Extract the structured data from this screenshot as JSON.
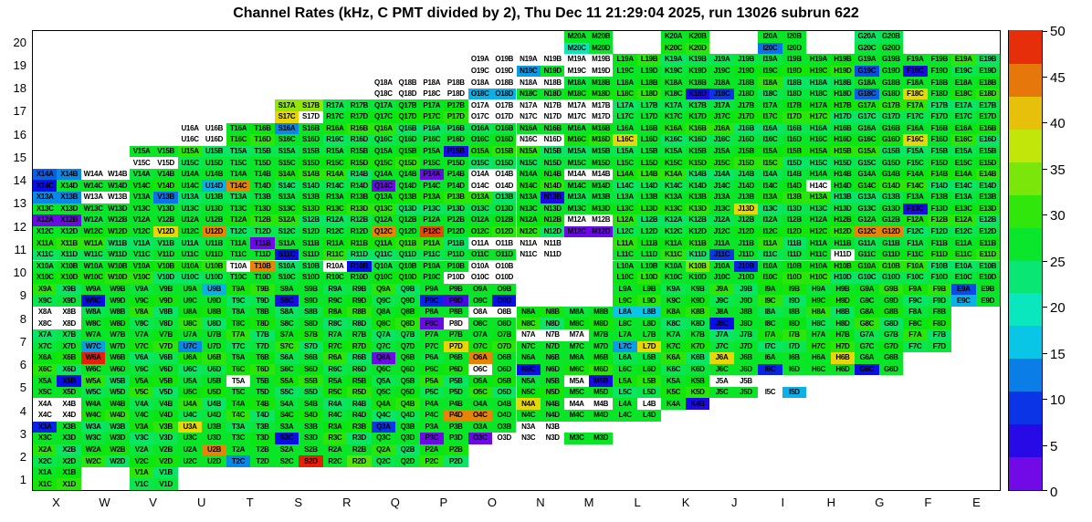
{
  "title": "Channel Rates (kHz, C PMT divided by 2), Thu Dec 11 21:29:04 2025, run 13026 subrun 622",
  "chart_data": {
    "type": "heatmap",
    "value_unit": "kHz",
    "x_categories": [
      "X",
      "W",
      "V",
      "U",
      "T",
      "S",
      "R",
      "Q",
      "P",
      "O",
      "N",
      "M",
      "L",
      "K",
      "J",
      "I",
      "H",
      "G",
      "F",
      "E"
    ],
    "y_categories": [
      1,
      2,
      3,
      4,
      5,
      6,
      7,
      8,
      9,
      10,
      11,
      12,
      13,
      14,
      15,
      16,
      17,
      18,
      19,
      20
    ],
    "cell_label_format": "{column}{row}{suffix}",
    "suffix_layout": {
      "A": "top-left",
      "B": "top-right",
      "C": "bottom-left",
      "D": "bottom-right"
    },
    "colorbar": {
      "min": 0,
      "max": 50,
      "ticks": [
        0,
        5,
        10,
        15,
        20,
        25,
        30,
        35,
        40,
        45,
        50
      ],
      "position": "right"
    },
    "default_value": 27,
    "rows": [
      {
        "row": 20,
        "span": [
          "M",
          "G"
        ],
        "gaps": [
          "L",
          "J",
          "H"
        ],
        "blocks": {
          "M": [
            27,
            27,
            20,
            27
          ],
          "I": [
            27,
            27,
            12,
            27
          ]
        }
      },
      {
        "row": 19,
        "span": [
          "O",
          "E"
        ],
        "blocks": {
          "O": [
            0,
            0,
            0,
            0
          ],
          "N": [
            0,
            0,
            14,
            27
          ],
          "M": [
            0,
            0,
            0,
            0
          ],
          "L": [
            28,
            30,
            27,
            27
          ],
          "G": [
            27,
            27,
            10,
            27
          ],
          "F": [
            27,
            27,
            6,
            27
          ]
        }
      },
      {
        "row": 18,
        "span": [
          "Q",
          "E"
        ],
        "blocks": {
          "Q": [
            0,
            0,
            0,
            0
          ],
          "P": [
            0,
            0,
            0,
            0
          ],
          "O": [
            0,
            0,
            15,
            15
          ],
          "N": [
            0,
            0,
            27,
            27
          ],
          "K": [
            27,
            27,
            27,
            6
          ],
          "J": [
            27,
            27,
            9,
            27
          ],
          "G": [
            27,
            27,
            11,
            27
          ],
          "F": [
            27,
            27,
            40,
            27
          ]
        }
      },
      {
        "row": 17,
        "span": [
          "S",
          "E"
        ],
        "blocks": {
          "S": [
            35,
            35,
            40,
            0
          ],
          "O": [
            0,
            0,
            0,
            0
          ],
          "N": [
            0,
            0,
            0,
            0
          ],
          "M": [
            0,
            0,
            0,
            0
          ]
        }
      },
      {
        "row": 16,
        "span": [
          "U",
          "E"
        ],
        "blocks": {
          "U": [
            0,
            0,
            0,
            0
          ],
          "S": [
            13,
            27,
            27,
            27
          ],
          "N": [
            27,
            27,
            0,
            0
          ],
          "L": [
            27,
            27,
            40,
            27
          ],
          "F": [
            27,
            27,
            40,
            27
          ]
        }
      },
      {
        "row": 15,
        "span": [
          "V",
          "E"
        ],
        "blocks": {
          "V": [
            27,
            27,
            0,
            0
          ],
          "P": [
            27,
            6,
            27,
            27
          ]
        }
      },
      {
        "row": 14,
        "span": [
          "X",
          "E"
        ],
        "blocks": {
          "X": [
            11,
            13,
            7,
            27
          ],
          "W": [
            0,
            0,
            27,
            27
          ],
          "U": [
            27,
            27,
            27,
            15
          ],
          "T": [
            27,
            27,
            44,
            27
          ],
          "Q": [
            27,
            27,
            2,
            27
          ],
          "P": [
            2,
            27,
            27,
            27
          ],
          "O": [
            0,
            0,
            0,
            0
          ],
          "M": [
            0,
            0,
            27,
            27
          ],
          "H": [
            27,
            27,
            0,
            27
          ]
        }
      },
      {
        "row": 13,
        "span": [
          "X",
          "E"
        ],
        "blocks": {
          "X": [
            13,
            13,
            27,
            27
          ],
          "W": [
            0,
            0,
            27,
            27
          ],
          "V": [
            27,
            12,
            27,
            27
          ],
          "N": [
            27,
            6,
            27,
            27
          ],
          "J": [
            27,
            27,
            27,
            40
          ],
          "F": [
            27,
            27,
            6,
            27
          ]
        }
      },
      {
        "row": 12,
        "span": [
          "X",
          "E"
        ],
        "blocks": {
          "X": [
            2,
            2,
            27,
            27
          ],
          "V": [
            27,
            27,
            27,
            40
          ],
          "U": [
            27,
            27,
            27,
            44
          ],
          "Q": [
            27,
            27,
            44,
            27
          ],
          "P": [
            27,
            27,
            47,
            27
          ],
          "M": [
            0,
            0,
            2,
            2
          ],
          "G": [
            27,
            27,
            44,
            44
          ]
        }
      },
      {
        "row": 11,
        "span": [
          "X",
          "E"
        ],
        "gaps": [
          "M"
        ],
        "blocks": {
          "T": [
            27,
            2,
            27,
            27
          ],
          "S": [
            27,
            27,
            7,
            27
          ],
          "O": [
            0,
            0,
            27,
            27
          ],
          "N": [
            0,
            0,
            0,
            0
          ],
          "L": [
            30,
            28,
            27,
            27
          ],
          "J": [
            27,
            27,
            9,
            27
          ],
          "H": [
            27,
            27,
            27,
            0
          ]
        }
      },
      {
        "row": 10,
        "span": [
          "X",
          "E"
        ],
        "gaps": [
          "N",
          "M"
        ],
        "blocks": {
          "T": [
            0,
            44,
            27,
            27
          ],
          "R": [
            0,
            7,
            27,
            27
          ],
          "P": [
            27,
            27,
            27,
            0
          ],
          "O": [
            0,
            0,
            0,
            0
          ],
          "L": [
            27,
            27,
            28,
            30
          ],
          "K": [
            27,
            34,
            27,
            27
          ],
          "J": [
            27,
            8,
            27,
            27
          ]
        }
      },
      {
        "row": 9,
        "span": [
          "X",
          "E"
        ],
        "gaps": [
          "N",
          "M"
        ],
        "blocks": {
          "W": [
            27,
            27,
            7,
            27
          ],
          "U": [
            27,
            15,
            27,
            27
          ],
          "S": [
            27,
            27,
            6,
            27
          ],
          "P": [
            27,
            27,
            8,
            4
          ],
          "O": [
            27,
            27,
            27,
            7
          ],
          "G": [
            28,
            30,
            27,
            27
          ],
          "E": [
            10,
            27,
            15,
            27
          ]
        }
      },
      {
        "row": 8,
        "span": [
          "X",
          "F"
        ],
        "blocks": {
          "X": [
            0,
            0,
            0,
            0
          ],
          "P": [
            27,
            27,
            2,
            0
          ],
          "O": [
            0,
            0,
            27,
            27
          ],
          "L": [
            16,
            16,
            27,
            27
          ],
          "J": [
            27,
            27,
            7,
            27
          ]
        }
      },
      {
        "row": 7,
        "span": [
          "X",
          "F"
        ],
        "blocks": {
          "W": [
            27,
            27,
            14,
            27
          ],
          "U": [
            27,
            27,
            13,
            27
          ],
          "P": [
            27,
            27,
            27,
            40
          ],
          "N": [
            0,
            0,
            27,
            27
          ],
          "M": [
            0,
            27,
            27,
            27
          ],
          "L": [
            27,
            27,
            14,
            40
          ]
        }
      },
      {
        "row": 6,
        "span": [
          "X",
          "G"
        ],
        "blocks": {
          "W": [
            49,
            27,
            27,
            27
          ],
          "Q": [
            2,
            27,
            27,
            27
          ],
          "O": [
            44,
            27,
            0,
            27
          ],
          "N": [
            27,
            27,
            7,
            27
          ],
          "J": [
            40,
            27,
            27,
            27
          ],
          "I": [
            27,
            27,
            8,
            27
          ],
          "H": [
            27,
            40,
            27,
            27
          ],
          "G": [
            27,
            27,
            7,
            27
          ]
        }
      },
      {
        "row": 5,
        "span": [
          "X",
          "I"
        ],
        "blocks": {
          "X": [
            27,
            7,
            27,
            27
          ],
          "T": [
            0,
            27,
            27,
            27
          ],
          "M": [
            0,
            6,
            27,
            27
          ],
          "J": [
            0,
            0,
            27,
            27
          ],
          "I": [
            null,
            null,
            0,
            15
          ]
        }
      },
      {
        "row": 4,
        "span": [
          "X",
          "K"
        ],
        "blocks": {
          "X": [
            0,
            0,
            0,
            0
          ],
          "P": [
            27,
            27,
            27,
            44
          ],
          "O": [
            27,
            27,
            44,
            27
          ],
          "N": [
            40,
            27,
            27,
            27
          ],
          "M": [
            0,
            0,
            27,
            27
          ],
          "L": [
            27,
            0,
            27,
            27
          ],
          "K": [
            27,
            6,
            null,
            null
          ]
        }
      },
      {
        "row": 3,
        "span": [
          "X",
          "M"
        ],
        "blocks": {
          "X": [
            8,
            27,
            27,
            27
          ],
          "U": [
            40,
            27,
            27,
            27
          ],
          "S": [
            27,
            27,
            7,
            27
          ],
          "Q": [
            9,
            27,
            27,
            27
          ],
          "P": [
            27,
            27,
            2,
            27
          ],
          "O": [
            27,
            27,
            2,
            0
          ],
          "N": [
            0,
            0,
            0,
            0
          ],
          "M": [
            null,
            null,
            27,
            27
          ]
        }
      },
      {
        "row": 2,
        "span": [
          "X",
          "P"
        ],
        "blocks": {
          "U": [
            27,
            44,
            27,
            27
          ],
          "T": [
            27,
            27,
            13,
            27
          ],
          "S": [
            27,
            27,
            27,
            49
          ],
          "R": [
            27,
            27,
            27,
            32
          ]
        }
      },
      {
        "row": 1,
        "span": [
          "X",
          "V"
        ],
        "gaps": [
          "W"
        ],
        "blocks": {}
      }
    ]
  }
}
